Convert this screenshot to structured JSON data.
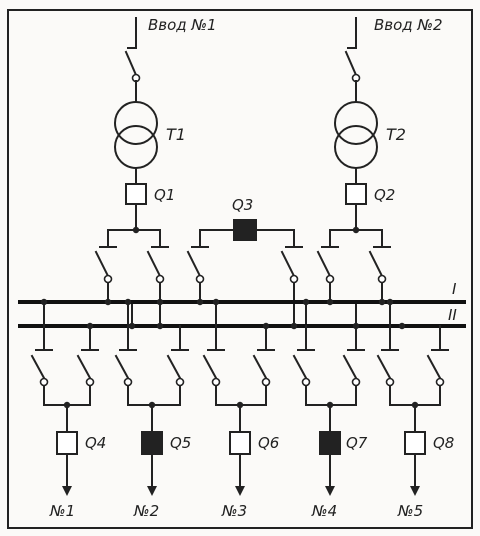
{
  "inputs": {
    "in1": "Ввод №1",
    "in2": "Ввод №2"
  },
  "transformers": {
    "t1": "Т1",
    "t2": "Т2"
  },
  "breakers": {
    "q1": "Q1",
    "q2": "Q2",
    "q3": "Q3",
    "q4": "Q4",
    "q5": "Q5",
    "q6": "Q6",
    "q7": "Q7",
    "q8": "Q8"
  },
  "buses": {
    "bus1": "I",
    "bus2": "II"
  },
  "outputs": {
    "o1": "№1",
    "o2": "№2",
    "o3": "№3",
    "o4": "№4",
    "o5": "№5"
  },
  "colors": {
    "line": "#222222",
    "background": "#fbfaf8",
    "closed_breaker_fill": "#222222",
    "open_breaker_fill": "#ffffff"
  }
}
